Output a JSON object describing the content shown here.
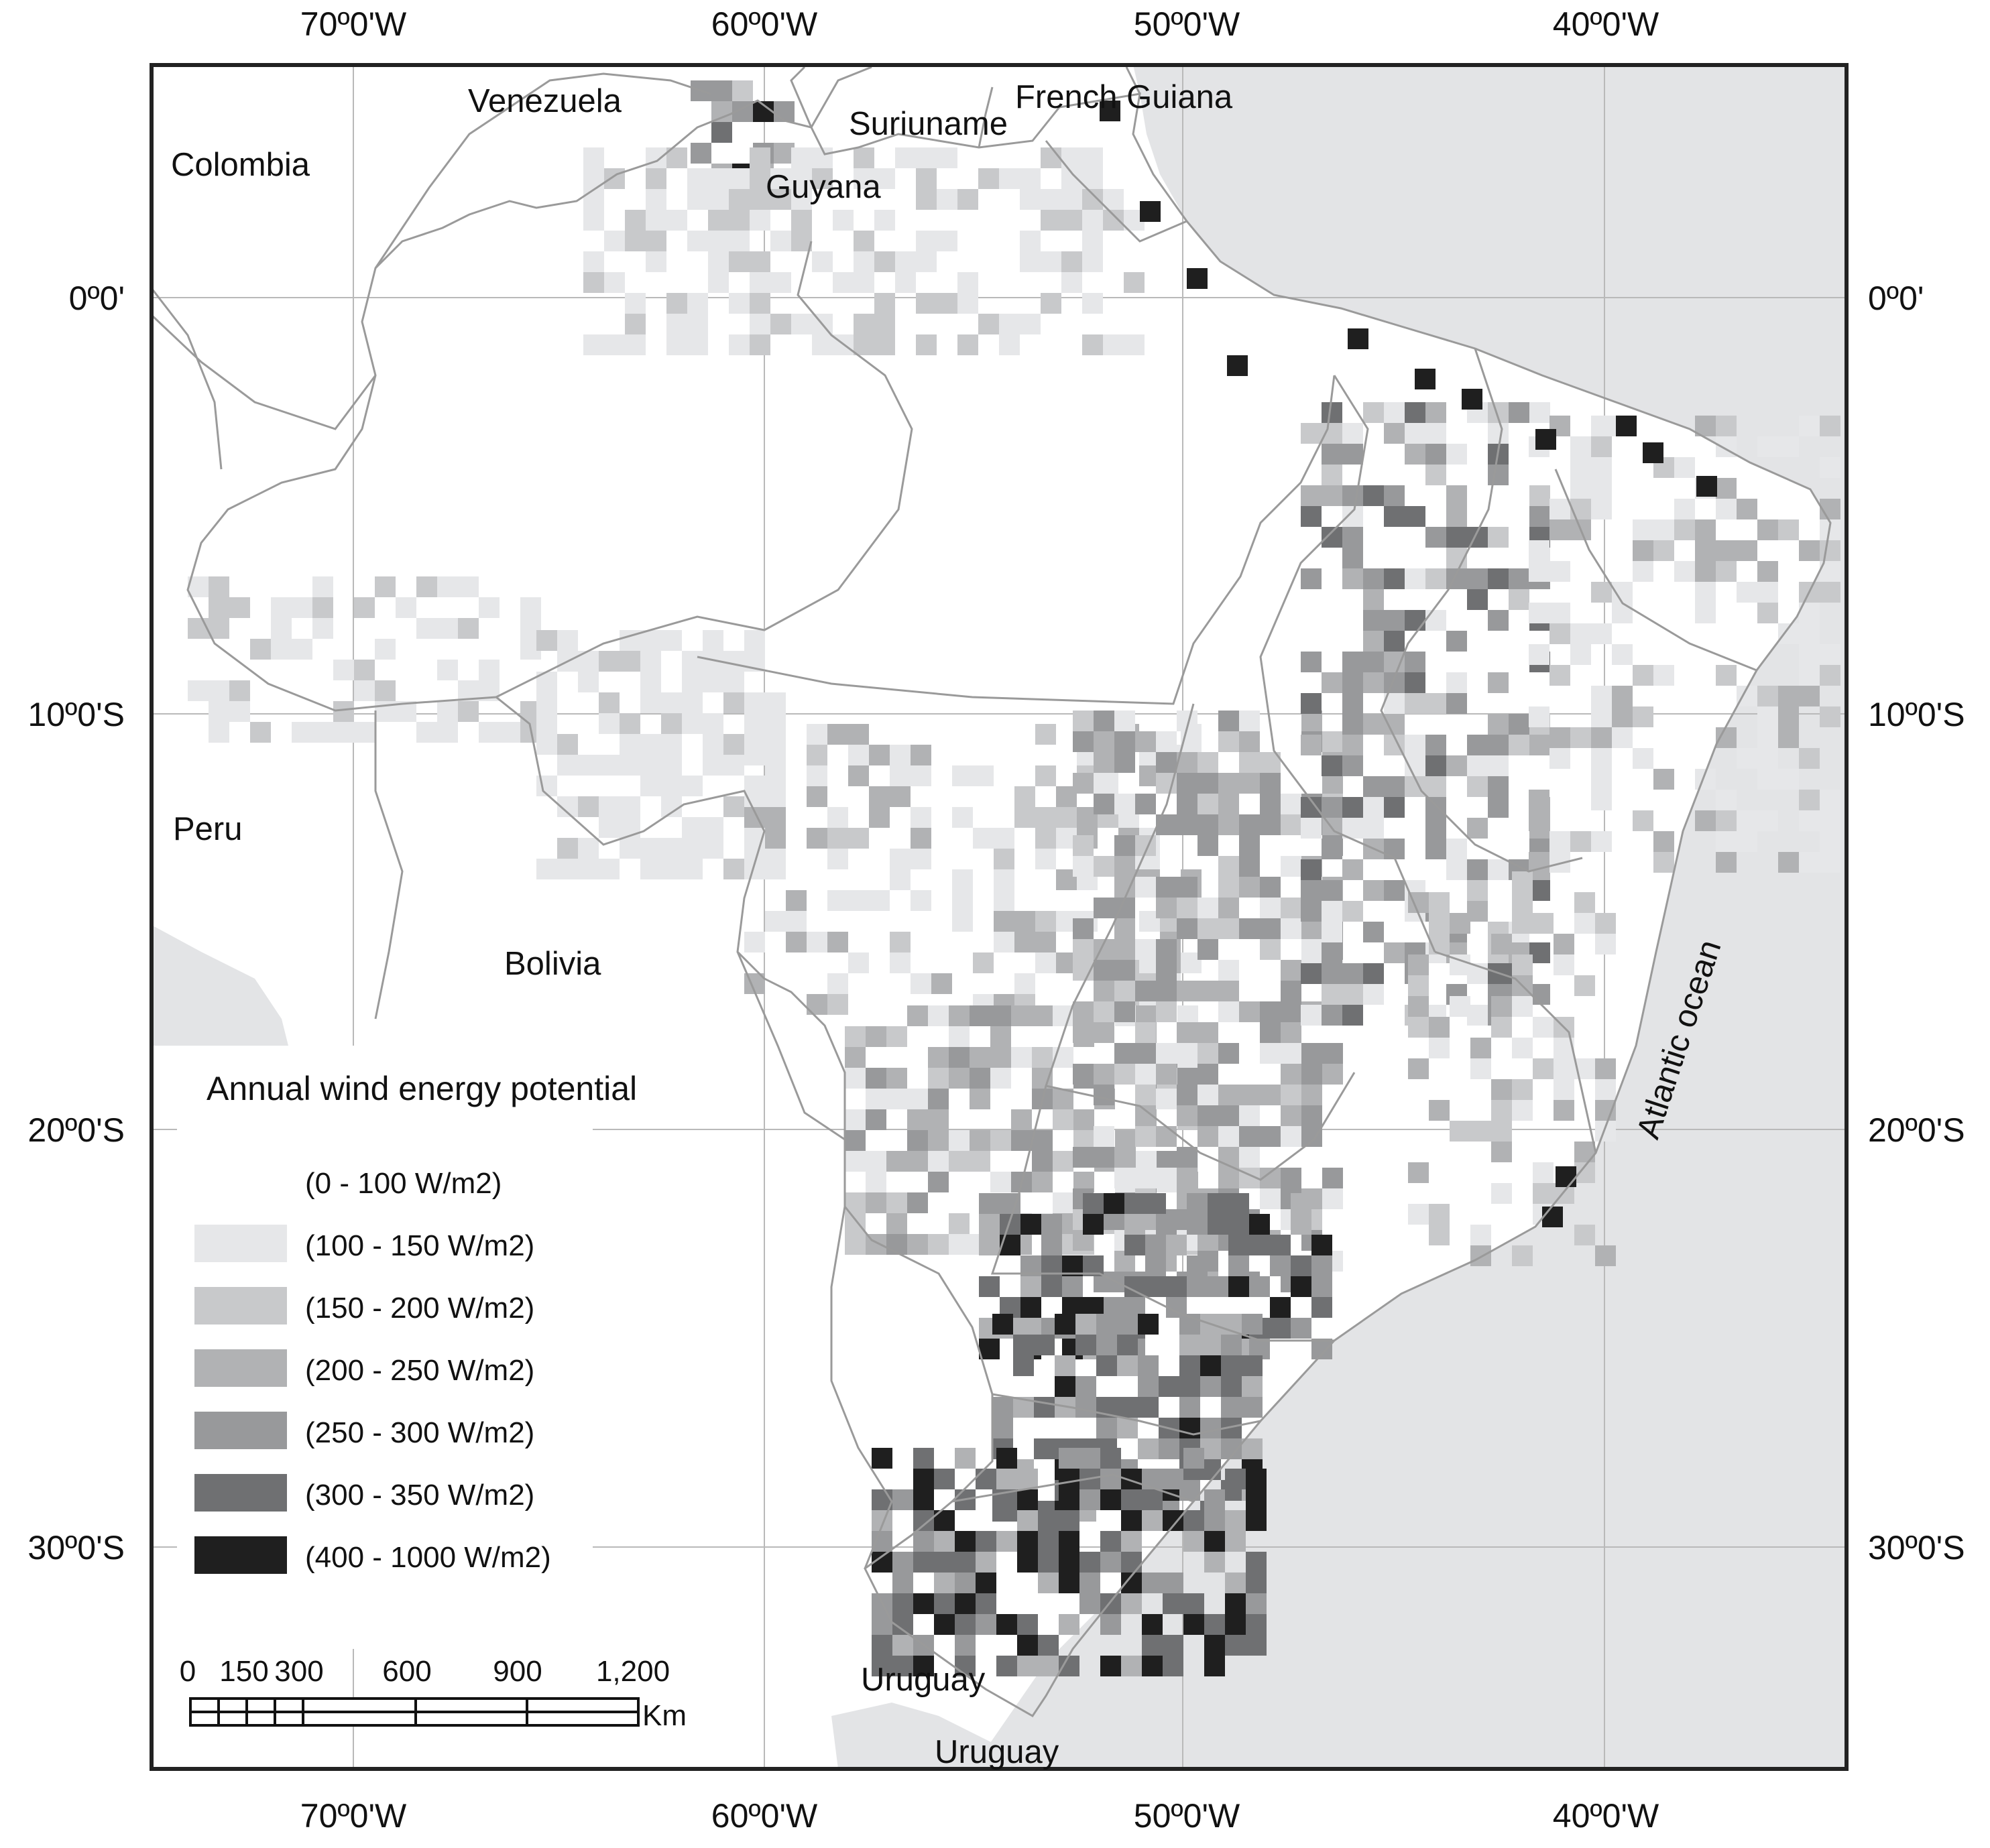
{
  "map": {
    "lon_labels": [
      "70º0'W",
      "60º0'W",
      "50º0'W",
      "40º0'W"
    ],
    "lat_labels": [
      "0º0'",
      "10º0'S",
      "20º0'S",
      "30º0'S"
    ],
    "places": {
      "venezuela": "Venezuela",
      "colombia": "Colombia",
      "suriname": "Suriuname",
      "french_guiana": "French Guiana",
      "guyana": "Guyana",
      "peru": "Peru",
      "bolivia": "Bolivia",
      "uruguay_1": "Uruguay",
      "uruguay_2": "Uruguay",
      "ocean": "Atlantic ocean"
    },
    "colors": {
      "ocean": "#e3e4e6",
      "land": "#ffffff",
      "border": "#9a9a9a",
      "grid": "#b9b9b9",
      "frame": "#222222"
    }
  },
  "legend": {
    "title": "Annual wind energy potential",
    "classes": [
      {
        "label": "(0 - 100 W/m2)",
        "color": "#ffffff"
      },
      {
        "label": "(100 - 150 W/m2)",
        "color": "#e6e7e9"
      },
      {
        "label": "(150 - 200 W/m2)",
        "color": "#c8c9cb"
      },
      {
        "label": "(200 - 250 W/m2)",
        "color": "#b1b2b4"
      },
      {
        "label": "(250 - 300 W/m2)",
        "color": "#98999b"
      },
      {
        "label": "(300 - 350 W/m2)",
        "color": "#6f7072"
      },
      {
        "label": "(400 - 1000 W/m2)",
        "color": "#1f1f1f"
      }
    ]
  },
  "scalebar": {
    "ticks": [
      "0",
      "150",
      "300",
      "600",
      "900",
      "1,200"
    ],
    "unit": "Km"
  }
}
